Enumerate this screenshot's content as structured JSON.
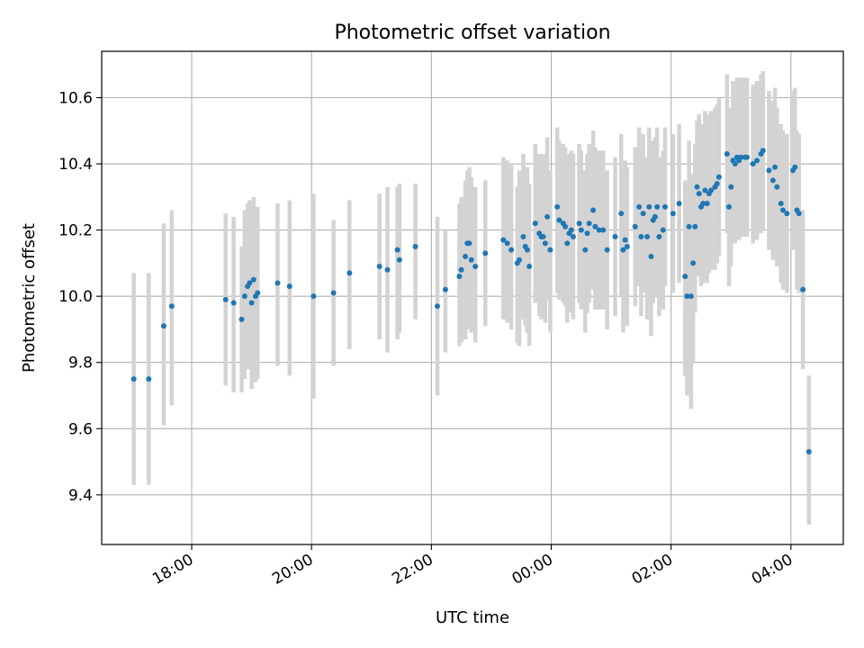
{
  "chart_data": {
    "type": "scatter",
    "title": "Photometric offset variation",
    "xlabel": "UTC time",
    "ylabel": "Photometric offset",
    "grid": true,
    "x_tick_labels": [
      "18:00",
      "20:00",
      "22:00",
      "00:00",
      "02:00",
      "04:00"
    ],
    "y_tick_labels": [
      "9.4",
      "9.6",
      "9.8",
      "10.0",
      "10.2",
      "10.4",
      "10.6"
    ],
    "y_ticks": [
      9.4,
      9.6,
      9.8,
      10.0,
      10.2,
      10.4,
      10.6
    ],
    "ylim": [
      9.25,
      10.74
    ],
    "colors": {
      "point": "#1f77b4",
      "errorbar": "#d3d3d3",
      "grid": "#b0b0b0"
    },
    "series": [
      {
        "columns": [
          "time",
          "offset",
          "lower",
          "upper"
        ],
        "points": [
          [
            "17:02",
            9.75,
            9.43,
            10.07
          ],
          [
            "17:17",
            9.75,
            9.43,
            10.07
          ],
          [
            "17:32",
            9.91,
            9.61,
            10.22
          ],
          [
            "17:40",
            9.97,
            9.67,
            10.26
          ],
          [
            "18:34",
            9.99,
            9.73,
            10.25
          ],
          [
            "18:42",
            9.98,
            9.71,
            10.24
          ],
          [
            "18:50",
            9.93,
            9.71,
            10.15
          ],
          [
            "18:53",
            10.0,
            9.75,
            10.26
          ],
          [
            "18:56",
            10.03,
            9.78,
            10.28
          ],
          [
            "18:58",
            10.04,
            9.79,
            10.29
          ],
          [
            "19:00",
            9.98,
            9.72,
            10.24
          ],
          [
            "19:02",
            10.05,
            9.8,
            10.3
          ],
          [
            "19:04",
            10.0,
            9.74,
            10.26
          ],
          [
            "19:06",
            10.01,
            9.75,
            10.27
          ],
          [
            "19:26",
            10.04,
            9.79,
            10.28
          ],
          [
            "19:38",
            10.03,
            9.76,
            10.29
          ],
          [
            "20:02",
            10.0,
            9.69,
            10.31
          ],
          [
            "20:22",
            10.01,
            9.79,
            10.23
          ],
          [
            "20:38",
            10.07,
            9.84,
            10.29
          ],
          [
            "21:08",
            10.09,
            9.87,
            10.31
          ],
          [
            "21:16",
            10.08,
            9.83,
            10.33
          ],
          [
            "21:26",
            10.14,
            9.87,
            10.33
          ],
          [
            "21:28",
            10.11,
            9.89,
            10.34
          ],
          [
            "21:44",
            10.15,
            9.93,
            10.34
          ],
          [
            "22:06",
            9.97,
            9.7,
            10.24
          ],
          [
            "22:14",
            10.02,
            9.83,
            10.2
          ],
          [
            "22:28",
            10.06,
            9.85,
            10.28
          ],
          [
            "22:30",
            10.08,
            9.86,
            10.3
          ],
          [
            "22:34",
            10.12,
            9.87,
            10.35
          ],
          [
            "22:36",
            10.16,
            9.9,
            10.38
          ],
          [
            "22:38",
            10.16,
            9.91,
            10.39
          ],
          [
            "22:40",
            10.11,
            9.89,
            10.36
          ],
          [
            "22:44",
            10.09,
            9.86,
            10.33
          ],
          [
            "22:54",
            10.13,
            9.91,
            10.35
          ],
          [
            "23:12",
            10.17,
            9.93,
            10.42
          ],
          [
            "23:16",
            10.16,
            9.92,
            10.41
          ],
          [
            "23:20",
            10.14,
            9.9,
            10.4
          ],
          [
            "23:26",
            10.1,
            9.86,
            10.33
          ],
          [
            "23:28",
            10.11,
            9.85,
            10.38
          ],
          [
            "23:32",
            10.18,
            9.93,
            10.43
          ],
          [
            "23:34",
            10.15,
            9.91,
            10.39
          ],
          [
            "23:36",
            10.14,
            9.89,
            10.39
          ],
          [
            "23:38",
            10.09,
            9.85,
            10.34
          ],
          [
            "23:44",
            10.22,
            9.98,
            10.46
          ],
          [
            "23:48",
            10.19,
            9.94,
            10.43
          ],
          [
            "23:50",
            10.18,
            9.93,
            10.42
          ],
          [
            "23:52",
            10.18,
            9.94,
            10.43
          ],
          [
            "23:54",
            10.16,
            9.92,
            10.4
          ],
          [
            "23:56",
            10.24,
            9.99,
            10.48
          ],
          [
            "23:59",
            10.14,
            9.89,
            10.38
          ],
          [
            "00:06",
            10.27,
            10.01,
            10.51
          ],
          [
            "00:08",
            10.23,
            9.99,
            10.47
          ],
          [
            "00:12",
            10.22,
            9.98,
            10.46
          ],
          [
            "00:14",
            10.21,
            9.97,
            10.45
          ],
          [
            "00:16",
            10.16,
            9.92,
            10.4
          ],
          [
            "00:18",
            10.19,
            9.95,
            10.43
          ],
          [
            "00:20",
            10.2,
            9.96,
            10.44
          ],
          [
            "00:22",
            10.18,
            9.93,
            10.43
          ],
          [
            "00:28",
            10.22,
            9.98,
            10.46
          ],
          [
            "00:30",
            10.2,
            9.96,
            10.44
          ],
          [
            "00:34",
            10.14,
            9.89,
            10.38
          ],
          [
            "00:36",
            10.19,
            9.95,
            10.43
          ],
          [
            "00:38",
            10.22,
            9.98,
            10.46
          ],
          [
            "00:42",
            10.26,
            10.02,
            10.5
          ],
          [
            "00:44",
            10.21,
            9.96,
            10.45
          ],
          [
            "00:48",
            10.2,
            9.96,
            10.44
          ],
          [
            "00:52",
            10.2,
            9.96,
            10.44
          ],
          [
            "00:56",
            10.14,
            9.9,
            10.38
          ],
          [
            "01:04",
            10.18,
            9.94,
            10.42
          ],
          [
            "01:10",
            10.25,
            10.0,
            10.49
          ],
          [
            "01:12",
            10.14,
            9.89,
            10.38
          ],
          [
            "01:14",
            10.17,
            9.93,
            10.41
          ],
          [
            "01:16",
            10.15,
            9.91,
            10.39
          ],
          [
            "01:24",
            10.21,
            9.97,
            10.45
          ],
          [
            "01:28",
            10.27,
            10.03,
            10.51
          ],
          [
            "01:30",
            10.18,
            9.94,
            10.42
          ],
          [
            "01:32",
            10.25,
            10.01,
            10.49
          ],
          [
            "01:36",
            10.18,
            9.93,
            10.42
          ],
          [
            "01:38",
            10.27,
            10.03,
            10.51
          ],
          [
            "01:40",
            10.12,
            9.88,
            10.36
          ],
          [
            "01:42",
            10.23,
            9.98,
            10.47
          ],
          [
            "01:44",
            10.24,
            10.0,
            10.48
          ],
          [
            "01:46",
            10.27,
            10.03,
            10.51
          ],
          [
            "01:48",
            10.18,
            9.94,
            10.42
          ],
          [
            "01:52",
            10.2,
            9.96,
            10.44
          ],
          [
            "01:54",
            10.27,
            10.03,
            10.51
          ],
          [
            "02:02",
            10.25,
            10.01,
            10.49
          ],
          [
            "02:08",
            10.28,
            10.04,
            10.52
          ],
          [
            "02:14",
            10.06,
            9.76,
            10.35
          ],
          [
            "02:16",
            10.0,
            9.7,
            10.3
          ],
          [
            "02:18",
            10.21,
            9.95,
            10.47
          ],
          [
            "02:20",
            10.0,
            9.66,
            10.35
          ],
          [
            "02:22",
            10.1,
            9.8,
            10.37
          ],
          [
            "02:24",
            10.21,
            9.95,
            10.46
          ],
          [
            "02:26",
            10.33,
            10.06,
            10.53
          ],
          [
            "02:28",
            10.31,
            10.06,
            10.55
          ],
          [
            "02:30",
            10.27,
            10.03,
            10.51
          ],
          [
            "02:32",
            10.28,
            10.04,
            10.52
          ],
          [
            "02:34",
            10.32,
            10.08,
            10.56
          ],
          [
            "02:36",
            10.28,
            10.04,
            10.52
          ],
          [
            "02:38",
            10.31,
            10.07,
            10.55
          ],
          [
            "02:40",
            10.32,
            10.08,
            10.56
          ],
          [
            "02:44",
            10.33,
            10.08,
            10.57
          ],
          [
            "02:46",
            10.34,
            10.1,
            10.58
          ],
          [
            "02:48",
            10.36,
            10.12,
            10.6
          ],
          [
            "02:56",
            10.43,
            10.19,
            10.67
          ],
          [
            "02:58",
            10.27,
            10.03,
            10.51
          ],
          [
            "03:00",
            10.33,
            10.09,
            10.57
          ],
          [
            "03:02",
            10.41,
            10.17,
            10.65
          ],
          [
            "03:04",
            10.4,
            10.16,
            10.64
          ],
          [
            "03:06",
            10.42,
            10.18,
            10.66
          ],
          [
            "03:08",
            10.41,
            10.17,
            10.65
          ],
          [
            "03:10",
            10.42,
            10.18,
            10.66
          ],
          [
            "03:14",
            10.42,
            10.18,
            10.66
          ],
          [
            "03:16",
            10.42,
            10.18,
            10.66
          ],
          [
            "03:22",
            10.4,
            10.16,
            10.64
          ],
          [
            "03:26",
            10.41,
            10.17,
            10.65
          ],
          [
            "03:30",
            10.43,
            10.19,
            10.67
          ],
          [
            "03:32",
            10.44,
            10.2,
            10.68
          ],
          [
            "03:38",
            10.38,
            10.14,
            10.62
          ],
          [
            "03:42",
            10.35,
            10.11,
            10.59
          ],
          [
            "03:44",
            10.39,
            10.15,
            10.63
          ],
          [
            "03:46",
            10.33,
            10.09,
            10.57
          ],
          [
            "03:50",
            10.28,
            10.04,
            10.52
          ],
          [
            "03:52",
            10.26,
            10.02,
            10.5
          ],
          [
            "03:56",
            10.25,
            10.01,
            10.49
          ],
          [
            "04:02",
            10.38,
            10.14,
            10.62
          ],
          [
            "04:04",
            10.39,
            10.15,
            10.63
          ],
          [
            "04:06",
            10.26,
            10.02,
            10.5
          ],
          [
            "04:08",
            10.25,
            10.01,
            10.49
          ],
          [
            "04:12",
            10.02,
            9.78,
            10.26
          ],
          [
            "04:18",
            9.53,
            9.31,
            9.76
          ]
        ]
      }
    ]
  }
}
